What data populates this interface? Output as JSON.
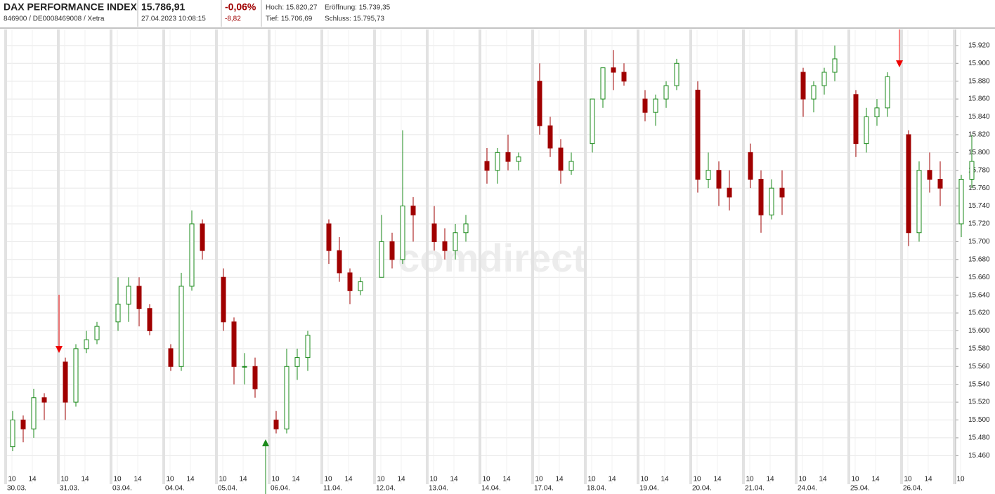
{
  "header": {
    "title": "DAX PERFORMANCE INDEX",
    "subtitle": "846900 / DE0008469008 / Xetra",
    "price": "15.786,91",
    "timestamp": "27.04.2023 10:08:15",
    "change_pct": "-0,06%",
    "change_abs": "-8,82",
    "high": "Hoch: 15.820,27",
    "open": "Eröffnung: 15.739,35",
    "low": "Tief: 15.706,69",
    "close": "Schluss: 15.795,73"
  },
  "watermark": "comdirect",
  "chart_data": {
    "type": "candlestick",
    "categories": [
      "30.03.",
      "31.03.",
      "03.04.",
      "04.04.",
      "05.04.",
      "06.04.",
      "11.04.",
      "12.04.",
      "13.04.",
      "14.04.",
      "17.04.",
      "18.04.",
      "19.04.",
      "20.04.",
      "21.04.",
      "24.04.",
      "25.04.",
      "26.04.",
      null
    ],
    "hour_labels": [
      "10",
      "14"
    ],
    "up_color": "#1a8a1a",
    "down_color": "#a00000",
    "open": [
      [
        15470,
        15500,
        15490,
        15525
      ],
      [
        15565,
        15520,
        15580,
        15590
      ],
      [
        15610,
        15630,
        15650,
        15625
      ],
      [
        15580,
        15560,
        15650,
        15720
      ],
      [
        15660,
        15610,
        15560,
        15560
      ],
      [
        15500,
        15490,
        15560,
        15570
      ],
      [
        15720,
        15690,
        15665,
        15645
      ],
      [
        15660,
        15700,
        15680,
        15740
      ],
      [
        15720,
        15700,
        15690,
        15710
      ],
      [
        15790,
        15780,
        15800,
        15790
      ],
      [
        15880,
        15830,
        15805,
        15780
      ],
      [
        15810,
        15860,
        15895,
        15890
      ],
      [
        15860,
        15845,
        15860,
        15875
      ],
      [
        15870,
        15770,
        15780,
        15760
      ],
      [
        15800,
        15770,
        15730,
        15760
      ],
      [
        15890,
        15860,
        15875,
        15890
      ],
      [
        15865,
        15810,
        15840,
        15850
      ],
      [
        15820,
        15710,
        15780,
        15770
      ],
      [
        15720,
        15770
      ]
    ],
    "high": [
      [
        15510,
        15505,
        15535,
        15530
      ],
      [
        15570,
        15585,
        15600,
        15610
      ],
      [
        15660,
        15660,
        15660,
        15630
      ],
      [
        15585,
        15665,
        15735,
        15725
      ],
      [
        15670,
        15615,
        15575,
        15570
      ],
      [
        15510,
        15580,
        15580,
        15600
      ],
      [
        15725,
        15705,
        15670,
        15660
      ],
      [
        15730,
        15710,
        15825,
        15750
      ],
      [
        15740,
        15715,
        15720,
        15730
      ],
      [
        15805,
        15805,
        15820,
        15800
      ],
      [
        15900,
        15840,
        15815,
        15800
      ],
      [
        15830,
        15870,
        15915,
        15900
      ],
      [
        15870,
        15865,
        15880,
        15905
      ],
      [
        15880,
        15800,
        15790,
        15780
      ],
      [
        15810,
        15780,
        15770,
        15780
      ],
      [
        15895,
        15880,
        15895,
        15920
      ],
      [
        15870,
        15850,
        15860,
        15890
      ],
      [
        15825,
        15790,
        15800,
        15790
      ],
      [
        15775,
        15820
      ]
    ],
    "low": [
      [
        15465,
        15475,
        15480,
        15500
      ],
      [
        15500,
        15515,
        15575,
        15585
      ],
      [
        15600,
        15610,
        15605,
        15595
      ],
      [
        15555,
        15555,
        15645,
        15680
      ],
      [
        15600,
        15540,
        15540,
        15525
      ],
      [
        15485,
        15485,
        15545,
        15555
      ],
      [
        15675,
        15655,
        15630,
        15640
      ],
      [
        15660,
        15670,
        15675,
        15700
      ],
      [
        15690,
        15680,
        15680,
        15700
      ],
      [
        15765,
        15765,
        15780,
        15780
      ],
      [
        15820,
        15795,
        15765,
        15775
      ],
      [
        15800,
        15850,
        15870,
        15875
      ],
      [
        15835,
        15830,
        15850,
        15870
      ],
      [
        15755,
        15760,
        15740,
        15735
      ],
      [
        15760,
        15710,
        15725,
        15730
      ],
      [
        15840,
        15845,
        15865,
        15880
      ],
      [
        15795,
        15800,
        15830,
        15840
      ],
      [
        15695,
        15700,
        15755,
        15740
      ],
      [
        15705,
        15760
      ]
    ],
    "close": [
      [
        15500,
        15490,
        15525,
        15520
      ],
      [
        15520,
        15580,
        15590,
        15605
      ],
      [
        15630,
        15650,
        15625,
        15600
      ],
      [
        15560,
        15650,
        15720,
        15690
      ],
      [
        15610,
        15560,
        15560,
        15535
      ],
      [
        15490,
        15560,
        15570,
        15595
      ],
      [
        15690,
        15665,
        15645,
        15655
      ],
      [
        15700,
        15680,
        15740,
        15730
      ],
      [
        15700,
        15690,
        15710,
        15720
      ],
      [
        15780,
        15800,
        15790,
        15795
      ],
      [
        15830,
        15805,
        15780,
        15790
      ],
      [
        15860,
        15895,
        15890,
        15880
      ],
      [
        15845,
        15860,
        15875,
        15900
      ],
      [
        15770,
        15780,
        15760,
        15750
      ],
      [
        15770,
        15730,
        15760,
        15750
      ],
      [
        15860,
        15875,
        15890,
        15905
      ],
      [
        15810,
        15840,
        15850,
        15885
      ],
      [
        15710,
        15780,
        15770,
        15760
      ],
      [
        15770,
        15790
      ]
    ],
    "ylim": [
      15428,
      15938
    ],
    "yticks": [
      {
        "value": 15460,
        "label": "15.460"
      },
      {
        "value": 15480,
        "label": "15.480"
      },
      {
        "value": 15500,
        "label": "15.500"
      },
      {
        "value": 15520,
        "label": "15.520"
      },
      {
        "value": 15540,
        "label": "15.540"
      },
      {
        "value": 15560,
        "label": "15.560"
      },
      {
        "value": 15580,
        "label": "15.580"
      },
      {
        "value": 15600,
        "label": "15.600"
      },
      {
        "value": 15620,
        "label": "15.620"
      },
      {
        "value": 15640,
        "label": "15.640"
      },
      {
        "value": 15660,
        "label": "15.660"
      },
      {
        "value": 15680,
        "label": "15.680"
      },
      {
        "value": 15700,
        "label": "15.700"
      },
      {
        "value": 15720,
        "label": "15.720"
      },
      {
        "value": 15740,
        "label": "15.740"
      },
      {
        "value": 15760,
        "label": "15.760"
      },
      {
        "value": 15780,
        "label": "15.780"
      },
      {
        "value": 15800,
        "label": "15.800"
      },
      {
        "value": 15820,
        "label": "15.820"
      },
      {
        "value": 15840,
        "label": "15.840"
      },
      {
        "value": 15860,
        "label": "15.860"
      },
      {
        "value": 15880,
        "label": "15.880"
      },
      {
        "value": 15900,
        "label": "15.900"
      },
      {
        "value": 15920,
        "label": "15.920"
      }
    ],
    "grid": true
  }
}
